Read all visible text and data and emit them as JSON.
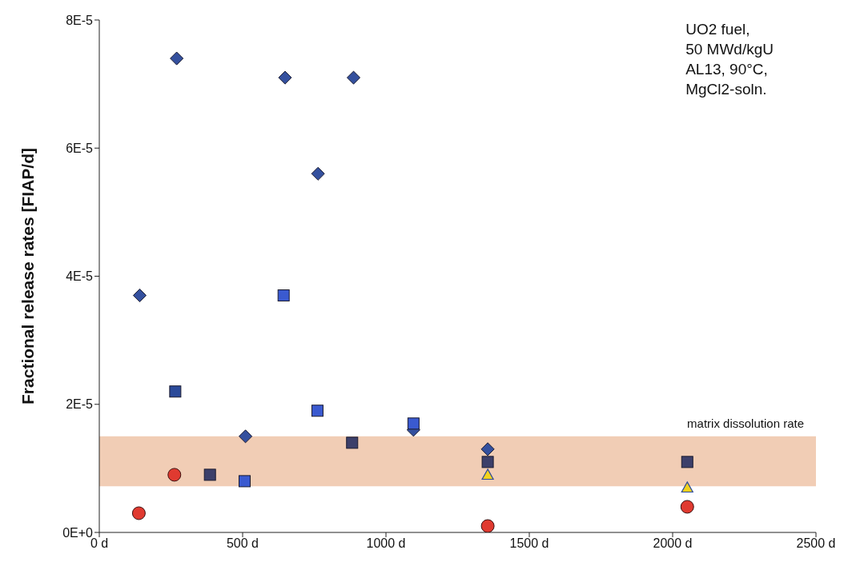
{
  "chart_data": {
    "type": "scatter",
    "ylabel": "Fractional release rates [FIAP/d]",
    "annotations": [
      "UO2 fuel,\n50 MWd/kgU\nAL13, 90°C,\nMgCl2-soln."
    ],
    "xlim": [
      0,
      2500
    ],
    "xticks": [
      {
        "value": 0,
        "label": "0 d"
      },
      {
        "value": 500,
        "label": "500 d"
      },
      {
        "value": 1000,
        "label": "1000 d"
      },
      {
        "value": 1500,
        "label": "1500 d"
      },
      {
        "value": 2000,
        "label": "2000 d"
      },
      {
        "value": 2500,
        "label": "2500 d"
      }
    ],
    "ylim": [
      0,
      8e-05
    ],
    "yticks": [
      {
        "value": 0,
        "label": "0E+0"
      },
      {
        "value": 2e-05,
        "label": "2E-5"
      },
      {
        "value": 4e-05,
        "label": "4E-5"
      },
      {
        "value": 6e-05,
        "label": "6E-5"
      },
      {
        "value": 8e-05,
        "label": "8E-5"
      }
    ],
    "grid": false,
    "legend": false,
    "bands": [
      {
        "axis": "y",
        "from": 7.2e-06,
        "to": 1.5e-05,
        "label": "matrix dissolution rate",
        "color": "#eec4a8"
      }
    ],
    "series": [
      {
        "marker": "diamond",
        "color": "#34509e",
        "x": [
          141,
          270,
          648,
          763,
          887,
          510,
          1096,
          1355
        ],
        "values": [
          3.7e-05,
          7.4e-05,
          7.1e-05,
          5.6e-05,
          7.1e-05,
          1.5e-05,
          1.6e-05,
          1.3e-05
        ]
      },
      {
        "marker": "square",
        "color": "#2b4a9a",
        "x": [
          265
        ],
        "values": [
          2.2e-05
        ]
      },
      {
        "marker": "square",
        "color": "#3a5ad0",
        "x": [
          643,
          507,
          761,
          1096
        ],
        "values": [
          3.7e-05,
          8e-06,
          1.9e-05,
          1.7e-05
        ]
      },
      {
        "marker": "square",
        "color": "#3c3f6a",
        "x": [
          386,
          882,
          1355,
          2051
        ],
        "values": [
          9e-06,
          1.4e-05,
          1.1e-05,
          1.1e-05
        ]
      },
      {
        "marker": "triangle",
        "color": "#f2d21c",
        "x": [
          1355,
          2051
        ],
        "values": [
          9e-06,
          7e-06
        ]
      },
      {
        "marker": "circle",
        "color": "#e03a30",
        "x": [
          138,
          262,
          1355,
          2051
        ],
        "values": [
          3e-06,
          9e-06,
          1e-06,
          4e-06
        ]
      }
    ]
  }
}
